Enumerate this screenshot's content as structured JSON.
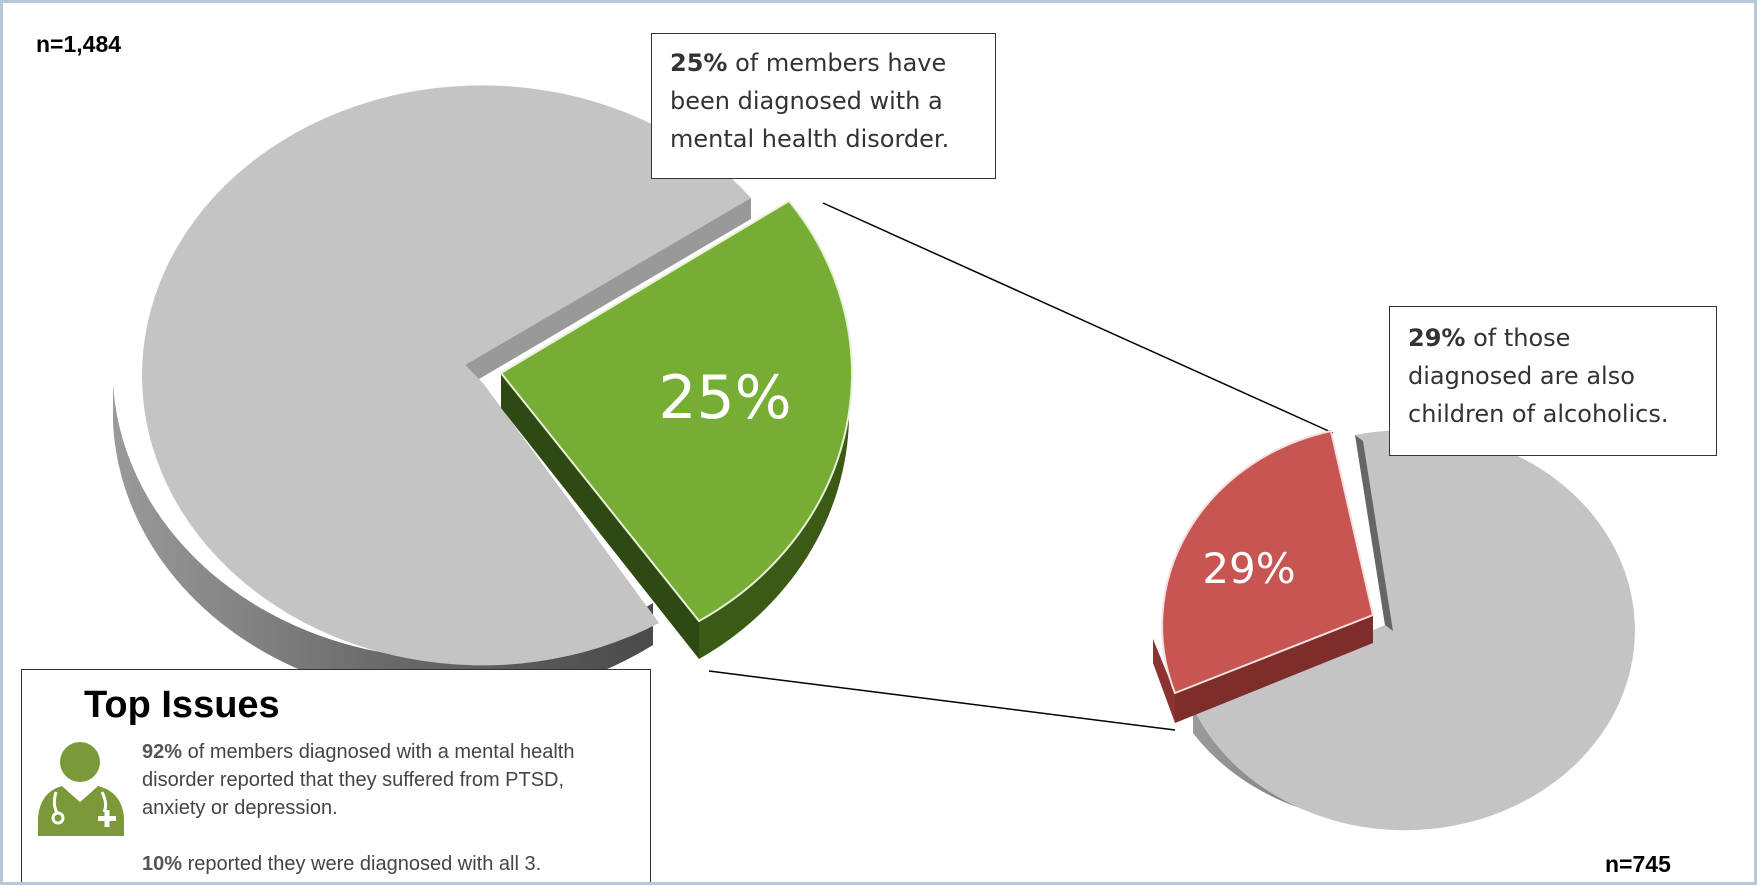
{
  "colors": {
    "grey": "#c4c4c4",
    "grey_side": "#8a8a8a",
    "green": "#76ad34",
    "green_side": "#2e4a12",
    "red": "#c75551",
    "red_side": "#7e2d2b",
    "icon": "#7a9a3a"
  },
  "chart_data": [
    {
      "type": "pie",
      "n_label": "n=1,484",
      "values": [
        25,
        75
      ],
      "slice_labels": [
        "25%",
        ""
      ],
      "callout": {
        "bold": "25%",
        "text": " of members have been diagnosed with a mental health disorder."
      }
    },
    {
      "type": "pie",
      "n_label": "n=745",
      "values": [
        29,
        71
      ],
      "slice_labels": [
        "29%",
        ""
      ],
      "callout": {
        "bold": "29%",
        "text": " of those diagnosed are also children of alcoholics."
      }
    }
  ],
  "top_issues": {
    "title": "Top Issues",
    "icon": "doctor-icon",
    "p1_bold": "92%",
    "p1_text": " of members diagnosed with a mental health disorder reported that they suffered from PTSD, anxiety or depression.",
    "p2_bold": "10%",
    "p2_text": " reported they were diagnosed with all 3."
  }
}
